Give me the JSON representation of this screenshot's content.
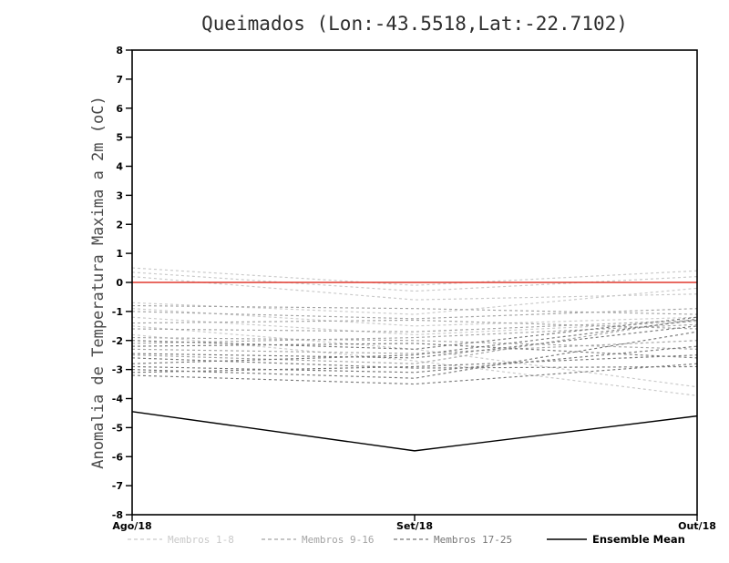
{
  "title": "Queimados (Lon:-43.5518,Lat:-22.7102)",
  "chart_data": {
    "type": "line",
    "title": "Queimados (Lon:-43.5518,Lat:-22.7102)",
    "xlabel": "",
    "ylabel": "Anomalia de Temperatura Maxima a 2m (oC)",
    "x_categories": [
      "Ago/18",
      "Set/18",
      "Out/18"
    ],
    "ylim": [
      -8,
      8
    ],
    "ytick_step": 1,
    "ytick_labels": [
      "8",
      "7",
      "6",
      "5",
      "4",
      "3",
      "2",
      "1",
      "0",
      "-1",
      "-2",
      "-3",
      "-4",
      "-5",
      "-6",
      "-7",
      "-8"
    ],
    "grid": false,
    "legend_position": "bottom",
    "zero_line": {
      "value": 0,
      "color": "#e0392e"
    },
    "series_groups": [
      {
        "label": "Membros 1-8",
        "color": "#c9c9c9",
        "line_style": "dashed",
        "members": [
          [
            0.5,
            -0.1,
            0.4
          ],
          [
            0.35,
            -0.3,
            0.2
          ],
          [
            0.2,
            -0.6,
            -0.4
          ],
          [
            -0.7,
            -1.1,
            -0.2
          ],
          [
            -0.9,
            -1.5,
            -1.2
          ],
          [
            -1.2,
            -1.8,
            -1.35
          ],
          [
            -1.5,
            -2.3,
            -3.6
          ],
          [
            -1.8,
            -2.7,
            -3.9
          ]
        ]
      },
      {
        "label": "Membros 9-16",
        "color": "#a4a4a4",
        "line_style": "dashed",
        "members": [
          [
            -0.8,
            -0.9,
            -1.1
          ],
          [
            -1.0,
            -1.25,
            -0.9
          ],
          [
            -1.4,
            -1.3,
            -1.6
          ],
          [
            -1.6,
            -1.7,
            -1.3
          ],
          [
            -1.9,
            -2.0,
            -2.3
          ],
          [
            -2.1,
            -1.9,
            -1.45
          ],
          [
            -2.3,
            -2.45,
            -2.0
          ],
          [
            -2.5,
            -2.8,
            -1.25
          ]
        ]
      },
      {
        "label": "Membros 17-25",
        "color": "#787878",
        "line_style": "dashed",
        "members": [
          [
            -2.0,
            -2.3,
            -1.2
          ],
          [
            -2.2,
            -2.1,
            -2.6
          ],
          [
            -2.45,
            -2.6,
            -1.5
          ],
          [
            -2.6,
            -2.95,
            -2.9
          ],
          [
            -2.8,
            -2.5,
            -1.3
          ],
          [
            -2.9,
            -3.1,
            -2.2
          ],
          [
            -3.0,
            -3.3,
            -1.7
          ],
          [
            -3.1,
            -2.9,
            -2.5
          ],
          [
            -3.2,
            -3.5,
            -2.8
          ]
        ]
      }
    ],
    "ensemble_mean": {
      "label": "Ensemble Mean",
      "color": "#000000",
      "line_style": "solid",
      "values": [
        -4.45,
        -5.8,
        -4.6
      ]
    }
  }
}
